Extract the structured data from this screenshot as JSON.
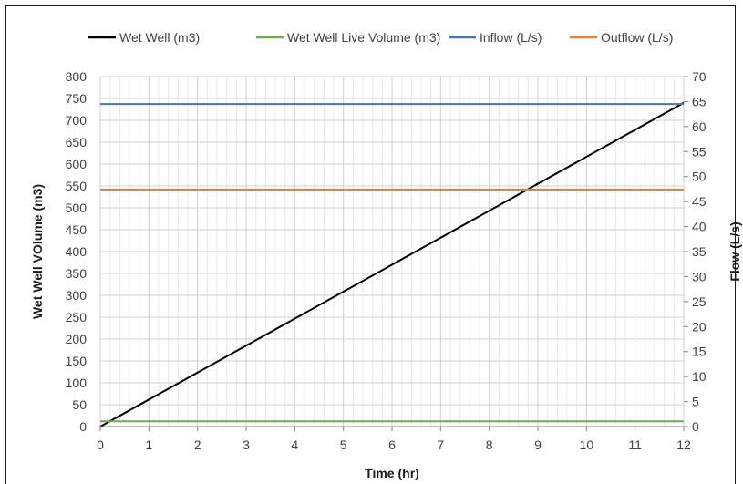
{
  "chart_data": {
    "type": "line",
    "x": [
      0,
      12
    ],
    "xlabel": "Time (hr)",
    "ylabel": "Wet Well VOlume (m3)",
    "y2label": "Flow (L/s)",
    "xlim": [
      0,
      12
    ],
    "ylim": [
      0,
      800
    ],
    "y2lim": [
      0,
      70
    ],
    "xticks": [
      0,
      1,
      2,
      3,
      4,
      5,
      6,
      7,
      8,
      9,
      10,
      11,
      12
    ],
    "yticks": [
      0,
      50,
      100,
      150,
      200,
      250,
      300,
      350,
      400,
      450,
      500,
      550,
      600,
      650,
      700,
      750,
      800
    ],
    "y2ticks": [
      0,
      5,
      10,
      15,
      20,
      25,
      30,
      35,
      40,
      45,
      50,
      55,
      60,
      65,
      70
    ],
    "grid": true,
    "legend_position": "top",
    "series": [
      {
        "name": "Wet Well (m3)",
        "axis": "left",
        "color": "#000000",
        "x": [
          0,
          12
        ],
        "y": [
          0,
          740
        ]
      },
      {
        "name": "Wet Well Live Volume (m3)",
        "axis": "left",
        "color": "#70ad47",
        "x": [
          0,
          12
        ],
        "y": [
          12,
          12
        ]
      },
      {
        "name": "Inflow (L/s)",
        "axis": "right",
        "color": "#4472c4",
        "x": [
          0,
          12
        ],
        "y": [
          64.5,
          64.5
        ]
      },
      {
        "name": "Outflow (L/s)",
        "axis": "right",
        "color": "#ed7d31",
        "x": [
          0,
          12
        ],
        "y": [
          47.4,
          47.4
        ]
      }
    ]
  }
}
